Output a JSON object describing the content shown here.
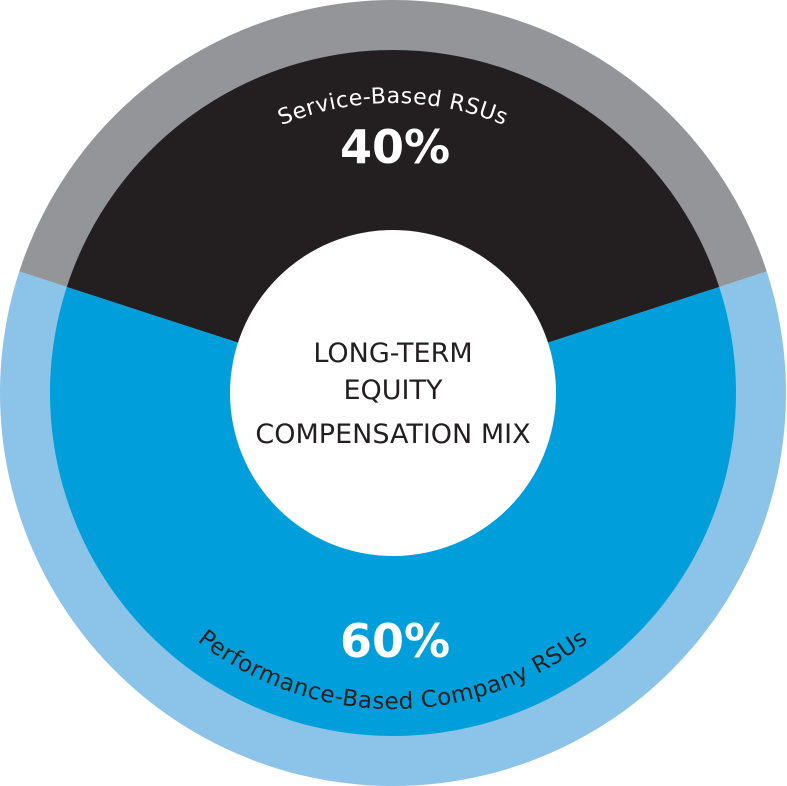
{
  "chart_data": {
    "type": "pie",
    "title": "LONG-TERM EQUITY COMPENSATION MIX",
    "title_lines": [
      "LONG-TERM",
      "EQUITY",
      "COMPENSATION MIX"
    ],
    "slices": [
      {
        "label": "Service-Based RSUs",
        "value": 40,
        "value_label": "40%",
        "color": "#231f20",
        "ring_color": "#939598",
        "label_color": "#ffffff"
      },
      {
        "label": "Performance-Based Company RSUs",
        "value": 60,
        "value_label": "60%",
        "color": "#009fdb",
        "ring_color": "#8cc3e8",
        "label_color": "#231f20"
      }
    ]
  }
}
